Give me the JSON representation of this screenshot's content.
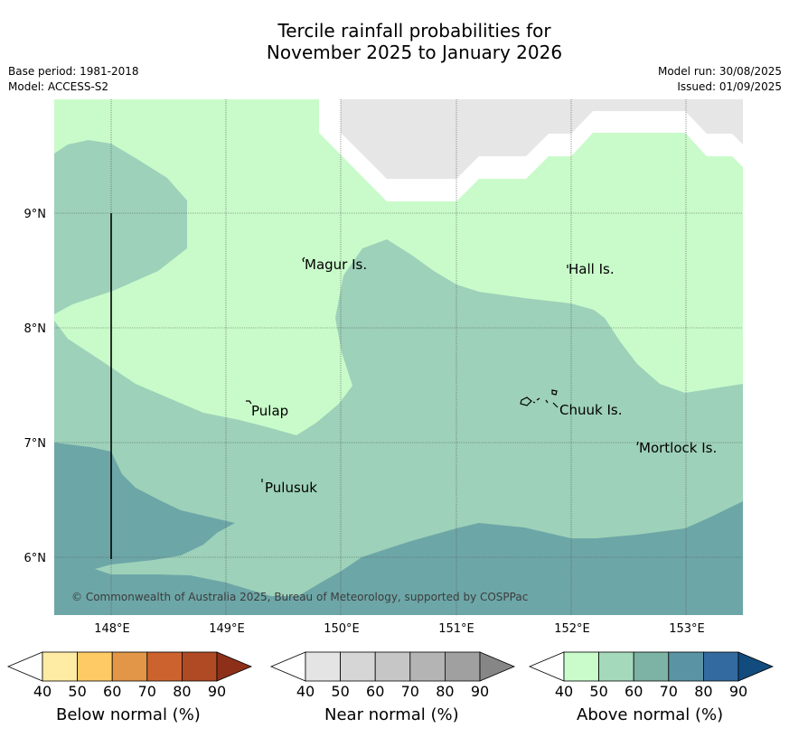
{
  "title_line1": "Tercile rainfall probabilities for",
  "title_line2": "November 2025 to January 2026",
  "meta": {
    "base_period": "Base period: 1981-2018",
    "model": "Model: ACCESS-S2",
    "model_run": "Model run: 30/08/2025",
    "issued": "Issued: 01/09/2025"
  },
  "map": {
    "lat_ticks": [
      "9°N",
      "8°N",
      "7°N",
      "6°N"
    ],
    "lon_ticks": [
      "148°E",
      "149°E",
      "150°E",
      "151°E",
      "152°E",
      "153°E"
    ],
    "places": [
      "Magur Is.",
      "Hall Is.",
      "Pulap",
      "Chuuk Is.",
      "Mortlock Is.",
      "Pulusuk"
    ],
    "copyright": "© Commonwealth of Australia 2025, Bureau of Meteorology, supported by COSPPac",
    "colors": {
      "no_data": "#e6e6e6",
      "above_40_50": "#c9fbca",
      "above_50_60": "#9dd1b9",
      "above_60_70": "#6da6a7",
      "grid": "#555555"
    }
  },
  "colorbars": [
    {
      "label": "Below normal (%)",
      "ticks": [
        "40",
        "50",
        "60",
        "70",
        "80",
        "90"
      ],
      "colors": [
        "#ffeca4",
        "#fdca65",
        "#e29647",
        "#cc632e",
        "#af4a24",
        "#8e3019"
      ]
    },
    {
      "label": "Near normal (%)",
      "ticks": [
        "40",
        "50",
        "60",
        "70",
        "80",
        "90"
      ],
      "colors": [
        "#e4e4e4",
        "#d6d6d6",
        "#c6c6c6",
        "#b4b4b4",
        "#a0a0a0",
        "#868686"
      ]
    },
    {
      "label": "Above normal (%)",
      "ticks": [
        "40",
        "50",
        "60",
        "70",
        "80",
        "90"
      ],
      "colors": [
        "#c9fbcb",
        "#a5d9bb",
        "#7cb3a4",
        "#5a94a4",
        "#336ba0",
        "#124b7d"
      ]
    }
  ]
}
